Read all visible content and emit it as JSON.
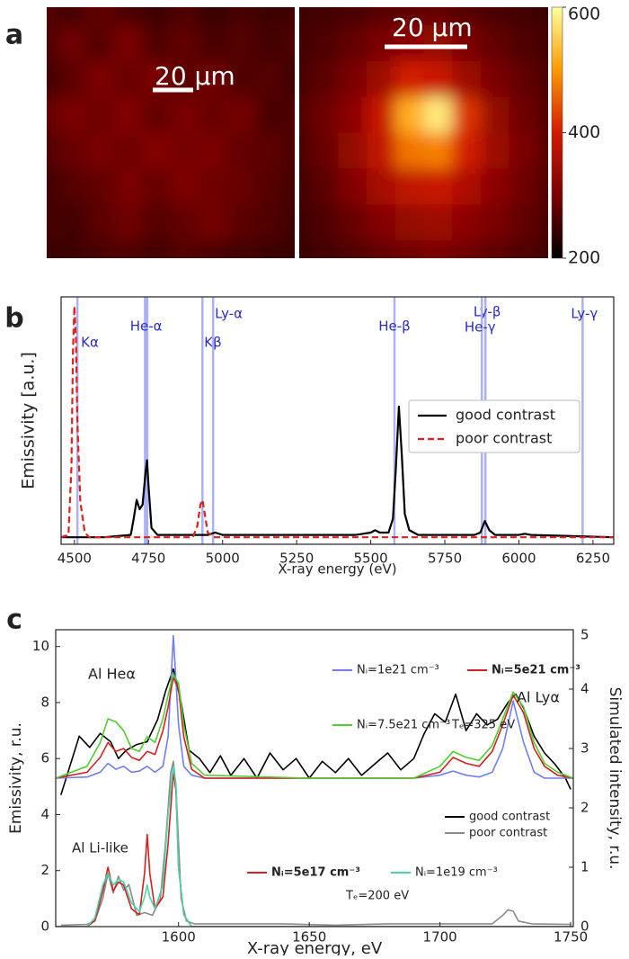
{
  "chart_data": [
    {
      "type": "heatmap",
      "panel": "a",
      "images": [
        {
          "scalebar": "20 μm",
          "values": [
            [
              270,
              255,
              280,
              260,
              250,
              265,
              245,
              260,
              250,
              255
            ],
            [
              260,
              290,
              270,
              300,
              265,
              280,
              260,
              270,
              255,
              265
            ],
            [
              255,
              275,
              305,
              285,
              300,
              275,
              290,
              265,
              270,
              250
            ],
            [
              280,
              300,
              290,
              310,
              280,
              300,
              285,
              295,
              260,
              265
            ],
            [
              265,
              285,
              300,
              290,
              310,
              295,
              300,
              280,
              275,
              260
            ],
            [
              250,
              270,
              280,
              300,
              285,
              305,
              290,
              285,
              270,
              255
            ],
            [
              260,
              255,
              275,
              290,
              270,
              280,
              295,
              275,
              265,
              250
            ],
            [
              245,
              250,
              260,
              265,
              255,
              270,
              260,
              255,
              250,
              245
            ]
          ]
        },
        {
          "scalebar": "20 μm",
          "values": [
            [
              250,
              255,
              260,
              270,
              275,
              280,
              270,
              260,
              255,
              250
            ],
            [
              255,
              265,
              280,
              300,
              320,
              330,
              300,
              280,
              265,
              255
            ],
            [
              260,
              275,
              300,
              340,
              400,
              390,
              340,
              300,
              280,
              260
            ],
            [
              265,
              290,
              320,
              390,
              520,
              580,
              420,
              330,
              290,
              265
            ],
            [
              260,
              285,
              330,
              380,
              470,
              480,
              400,
              340,
              300,
              270
            ],
            [
              255,
              275,
              310,
              350,
              380,
              390,
              360,
              320,
              290,
              265
            ],
            [
              250,
              265,
              285,
              310,
              330,
              340,
              320,
              300,
              280,
              260
            ],
            [
              245,
              255,
              265,
              280,
              290,
              300,
              290,
              275,
              265,
              255
            ]
          ]
        }
      ],
      "clim": [
        200,
        600
      ],
      "cticks": [
        200,
        400,
        600
      ],
      "colormap": [
        "#000000",
        "#7a0000",
        "#d21a00",
        "#ff9a00",
        "#ffff9e"
      ]
    },
    {
      "type": "line",
      "panel": "b",
      "xlabel": "X-ray energy (eV)",
      "ylabel": "Emissivity [a.u.]",
      "xlim": [
        4455,
        6320
      ],
      "xticks": [
        4500,
        4750,
        5000,
        5250,
        5500,
        5750,
        6000,
        6250
      ],
      "ylim": [
        -0.03,
        1.03
      ],
      "legend": "center right",
      "reference_color": "#aab2f4",
      "reference_text_color": "#2b2bcc",
      "reference_lines": [
        {
          "label": "Kα",
          "x": 4510
        },
        {
          "label": "He-α",
          "x": 4742
        },
        {
          "label": "Kβ",
          "x": 4932
        },
        {
          "label": "Ly-α",
          "x": 4968
        },
        {
          "label": "He-β",
          "x": 5580
        },
        {
          "label": "Ly-β",
          "x": 5887
        },
        {
          "label": "He-γ",
          "x": 5875
        },
        {
          "label": "Ly-γ",
          "x": 6215
        }
      ],
      "series": [
        {
          "name": "good contrast",
          "color": "#000000",
          "linestyle": "solid",
          "x": [
            4455,
            4600,
            4690,
            4700,
            4710,
            4720,
            4730,
            4740,
            4745,
            4750,
            4760,
            4780,
            4950,
            4975,
            5000,
            5450,
            5500,
            5515,
            5530,
            5560,
            5575,
            5585,
            5595,
            5605,
            5615,
            5630,
            5660,
            5850,
            5870,
            5885,
            5900,
            5920,
            6000,
            6020,
            6040,
            6320
          ],
          "values": [
            0,
            0,
            0.01,
            0.08,
            0.16,
            0.12,
            0.14,
            0.28,
            0.33,
            0.22,
            0.04,
            0.01,
            0.01,
            0.02,
            0.01,
            0.01,
            0.02,
            0.03,
            0.02,
            0.02,
            0.08,
            0.3,
            0.56,
            0.35,
            0.1,
            0.03,
            0.01,
            0.01,
            0.02,
            0.07,
            0.03,
            0.01,
            0.01,
            0.015,
            0.01,
            0
          ]
        },
        {
          "name": "poor contrast",
          "color": "#e0201b",
          "linestyle": "dashed",
          "x": [
            4455,
            4480,
            4490,
            4495,
            4500,
            4505,
            4510,
            4520,
            4535,
            4550,
            4900,
            4915,
            4925,
            4932,
            4940,
            4950,
            4970,
            6320
          ],
          "values": [
            0,
            0.01,
            0.3,
            0.8,
            0.99,
            0.85,
            0.5,
            0.15,
            0.02,
            0,
            0,
            0.05,
            0.14,
            0.16,
            0.1,
            0.02,
            0,
            0
          ]
        }
      ]
    },
    {
      "type": "line",
      "panel": "c",
      "xlabel": "X-ray energy, eV",
      "ylabel": "Emissivity, r.u.",
      "y2label": "Simulated intensity, r.u.",
      "xlim": [
        1553,
        1751
      ],
      "xticks": [
        1600,
        1650,
        1700,
        1750
      ],
      "ylim": [
        0,
        10.6
      ],
      "yticks": [
        0,
        2,
        4,
        6,
        8,
        10
      ],
      "y2lim": [
        0,
        5
      ],
      "y2ticks": [
        0,
        1,
        2,
        3,
        4,
        5
      ],
      "annotations": [
        "Al Heα",
        "Al Lyα",
        "Al Li-like",
        "Tₑ=325 eV",
        "Tₑ=200 eV"
      ],
      "series": [
        {
          "name": "good contrast",
          "color": "#000000",
          "axis": "y",
          "x": [
            1555,
            1558,
            1562,
            1566,
            1570,
            1574,
            1577,
            1580,
            1584,
            1588,
            1592,
            1595,
            1598,
            1601,
            1604,
            1608,
            1612,
            1616,
            1620,
            1625,
            1630,
            1635,
            1640,
            1645,
            1650,
            1655,
            1660,
            1665,
            1670,
            1675,
            1680,
            1685,
            1690,
            1694,
            1698,
            1702,
            1706,
            1710,
            1714,
            1718,
            1722,
            1726,
            1729,
            1732,
            1736,
            1740,
            1744,
            1748,
            1750
          ],
          "values": [
            4.7,
            5.6,
            6.8,
            6.4,
            6.9,
            6.6,
            6.0,
            6.3,
            6.5,
            6.6,
            7.4,
            8.4,
            9.2,
            8.0,
            6.3,
            6.0,
            5.5,
            6.1,
            5.4,
            6.0,
            5.3,
            6.2,
            5.6,
            6.0,
            5.3,
            5.9,
            5.5,
            6.0,
            5.4,
            5.8,
            6.2,
            5.6,
            6.0,
            6.9,
            7.6,
            7.3,
            8.3,
            7.0,
            7.6,
            7.2,
            7.4,
            8.0,
            8.3,
            7.8,
            6.8,
            6.2,
            5.8,
            5.3,
            4.9
          ]
        },
        {
          "name": "poor contrast",
          "color": "#8a8a8a",
          "axis": "y",
          "x": [
            1555,
            1565,
            1568,
            1571,
            1573,
            1575,
            1577,
            1579,
            1581,
            1584,
            1587,
            1590,
            1593,
            1595,
            1597,
            1598,
            1599,
            1601,
            1603,
            1606,
            1620,
            1640,
            1660,
            1680,
            1700,
            1720,
            1724,
            1726,
            1728,
            1730,
            1735,
            1750
          ],
          "values": [
            0.05,
            0.08,
            0.2,
            1.0,
            1.9,
            1.2,
            1.8,
            1.3,
            1.5,
            0.4,
            0.5,
            0.4,
            1.0,
            3.0,
            5.5,
            5.9,
            5.0,
            1.0,
            0.2,
            0.1,
            0.1,
            0.1,
            0.05,
            0.1,
            0.1,
            0.1,
            0.4,
            0.6,
            0.55,
            0.2,
            0.1,
            0.08
          ]
        },
        {
          "name": "Nᵢ=1e21 cm⁻³",
          "color": "#6f7ff0",
          "axis": "y2",
          "bold": false,
          "x": [
            1553,
            1565,
            1570,
            1573,
            1576,
            1579,
            1582,
            1585,
            1588,
            1591,
            1594,
            1596,
            1598,
            1600,
            1602,
            1605,
            1610,
            1650,
            1690,
            1700,
            1705,
            1710,
            1715,
            1720,
            1724,
            1728,
            1732,
            1736,
            1740,
            1745,
            1751
          ],
          "values": [
            2.5,
            2.52,
            2.6,
            2.75,
            2.65,
            2.7,
            2.6,
            2.62,
            2.7,
            2.6,
            2.7,
            3.2,
            4.9,
            3.4,
            2.7,
            2.55,
            2.5,
            2.5,
            2.5,
            2.55,
            2.62,
            2.55,
            2.52,
            2.6,
            3.0,
            3.8,
            3.1,
            2.6,
            2.5,
            2.5,
            2.5
          ]
        },
        {
          "name": "Nᵢ=5e21 cm⁻³",
          "color": "#d42020",
          "axis": "y2",
          "bold": true,
          "x": [
            1553,
            1565,
            1570,
            1573,
            1576,
            1579,
            1582,
            1585,
            1588,
            1591,
            1594,
            1596,
            1598,
            1600,
            1602,
            1605,
            1610,
            1650,
            1690,
            1700,
            1705,
            1710,
            1715,
            1720,
            1724,
            1728,
            1732,
            1736,
            1740,
            1745,
            1751
          ],
          "values": [
            2.5,
            2.6,
            2.85,
            3.1,
            2.95,
            3.0,
            2.85,
            2.8,
            2.95,
            2.9,
            3.3,
            3.7,
            4.2,
            4.0,
            3.2,
            2.65,
            2.5,
            2.5,
            2.5,
            2.6,
            2.85,
            2.75,
            2.7,
            2.95,
            3.4,
            3.9,
            3.6,
            3.0,
            2.7,
            2.55,
            2.5
          ]
        },
        {
          "name": "Nᵢ=7.5e21 cm⁻³",
          "color": "#4fcf2f",
          "axis": "y2",
          "bold": false,
          "x": [
            1553,
            1565,
            1570,
            1573,
            1576,
            1579,
            1582,
            1585,
            1588,
            1591,
            1594,
            1596,
            1598,
            1600,
            1602,
            1605,
            1610,
            1650,
            1690,
            1700,
            1705,
            1710,
            1715,
            1720,
            1724,
            1728,
            1732,
            1736,
            1740,
            1745,
            1751
          ],
          "values": [
            2.5,
            2.7,
            3.1,
            3.5,
            3.45,
            3.3,
            3.0,
            2.95,
            3.2,
            3.1,
            3.5,
            3.9,
            4.25,
            4.1,
            3.4,
            2.75,
            2.55,
            2.5,
            2.5,
            2.7,
            2.95,
            2.85,
            2.8,
            3.05,
            3.5,
            3.95,
            3.7,
            3.1,
            2.75,
            2.6,
            2.5
          ]
        },
        {
          "name": "Nᵢ=5e17 cm⁻³",
          "color": "#d42020",
          "axis": "y2",
          "bold": true,
          "x": [
            1553,
            1565,
            1568,
            1571,
            1573,
            1575,
            1577,
            1579,
            1582,
            1585,
            1587,
            1588,
            1589,
            1591,
            1594,
            1596,
            1598,
            1599,
            1600,
            1602,
            1605,
            1751
          ],
          "values": [
            0,
            0,
            0.1,
            0.6,
            1.0,
            0.6,
            0.75,
            0.7,
            0.3,
            0.2,
            0.9,
            1.55,
            0.9,
            0.3,
            0.5,
            1.4,
            2.6,
            2.3,
            1.0,
            0.2,
            0,
            0
          ]
        },
        {
          "name": "Nᵢ=1e19 cm⁻³",
          "color": "#45d8a8",
          "axis": "y2",
          "bold": false,
          "x": [
            1553,
            1565,
            1568,
            1571,
            1573,
            1575,
            1577,
            1579,
            1582,
            1585,
            1587,
            1588,
            1589,
            1591,
            1594,
            1596,
            1598,
            1599,
            1600,
            1602,
            1605,
            1751
          ],
          "values": [
            0,
            0,
            0.15,
            0.7,
            0.9,
            0.7,
            0.8,
            0.75,
            0.4,
            0.25,
            0.5,
            0.7,
            0.5,
            0.3,
            0.7,
            1.9,
            2.7,
            2.4,
            1.0,
            0.2,
            0,
            0
          ]
        }
      ]
    }
  ]
}
